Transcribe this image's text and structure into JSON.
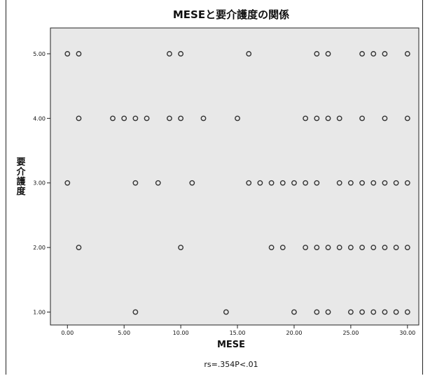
{
  "chart_data": {
    "type": "scatter",
    "title": "MESEと要介護度の関係",
    "xlabel": "MESE",
    "ylabel": "要介護度",
    "annotation": "rs=.354P<.01",
    "xlim": [
      -1.5,
      31
    ],
    "ylim": [
      0.8,
      5.4
    ],
    "xticks": [
      "0.00",
      "5.00",
      "10.00",
      "15.00",
      "20.00",
      "25.00",
      "30.00"
    ],
    "yticks": [
      "1.00",
      "2.00",
      "3.00",
      "4.00",
      "5.00"
    ],
    "grid": false,
    "colors": {
      "plot_background": "#e8e8e8",
      "marker": "#333333"
    },
    "points": [
      [
        0,
        5
      ],
      [
        1,
        5
      ],
      [
        9,
        5
      ],
      [
        10,
        5
      ],
      [
        16,
        5
      ],
      [
        22,
        5
      ],
      [
        23,
        5
      ],
      [
        26,
        5
      ],
      [
        27,
        5
      ],
      [
        28,
        5
      ],
      [
        30,
        5
      ],
      [
        1,
        4
      ],
      [
        4,
        4
      ],
      [
        5,
        4
      ],
      [
        6,
        4
      ],
      [
        7,
        4
      ],
      [
        9,
        4
      ],
      [
        10,
        4
      ],
      [
        12,
        4
      ],
      [
        15,
        4
      ],
      [
        21,
        4
      ],
      [
        22,
        4
      ],
      [
        23,
        4
      ],
      [
        24,
        4
      ],
      [
        26,
        4
      ],
      [
        28,
        4
      ],
      [
        30,
        4
      ],
      [
        0,
        3
      ],
      [
        6,
        3
      ],
      [
        8,
        3
      ],
      [
        11,
        3
      ],
      [
        16,
        3
      ],
      [
        17,
        3
      ],
      [
        18,
        3
      ],
      [
        19,
        3
      ],
      [
        20,
        3
      ],
      [
        21,
        3
      ],
      [
        22,
        3
      ],
      [
        24,
        3
      ],
      [
        25,
        3
      ],
      [
        26,
        3
      ],
      [
        27,
        3
      ],
      [
        28,
        3
      ],
      [
        29,
        3
      ],
      [
        30,
        3
      ],
      [
        1,
        2
      ],
      [
        10,
        2
      ],
      [
        18,
        2
      ],
      [
        19,
        2
      ],
      [
        21,
        2
      ],
      [
        22,
        2
      ],
      [
        23,
        2
      ],
      [
        24,
        2
      ],
      [
        25,
        2
      ],
      [
        26,
        2
      ],
      [
        27,
        2
      ],
      [
        28,
        2
      ],
      [
        29,
        2
      ],
      [
        30,
        2
      ],
      [
        6,
        1
      ],
      [
        14,
        1
      ],
      [
        20,
        1
      ],
      [
        22,
        1
      ],
      [
        23,
        1
      ],
      [
        25,
        1
      ],
      [
        26,
        1
      ],
      [
        27,
        1
      ],
      [
        28,
        1
      ],
      [
        29,
        1
      ],
      [
        30,
        1
      ]
    ]
  }
}
